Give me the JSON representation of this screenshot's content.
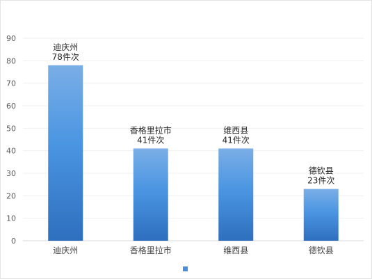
{
  "chart_data": {
    "type": "bar",
    "categories": [
      "迪庆州",
      "香格里拉市",
      "维西县",
      "德钦县"
    ],
    "values": [
      78,
      41,
      41,
      23
    ],
    "data_labels": [
      "78件次",
      "41件次",
      "41件次",
      "23件次"
    ],
    "ylim": [
      0,
      90
    ],
    "yticks": [
      0,
      10,
      20,
      30,
      40,
      50,
      60,
      70,
      80,
      90
    ],
    "grid": true,
    "legend": {
      "position": "bottom",
      "entries": [
        ""
      ]
    },
    "colors": {
      "bar_top": "#7aaee6",
      "bar_mid": "#4a95e2",
      "bar_bottom": "#2e6fbe",
      "legend_swatch": "#4a90d9"
    }
  }
}
